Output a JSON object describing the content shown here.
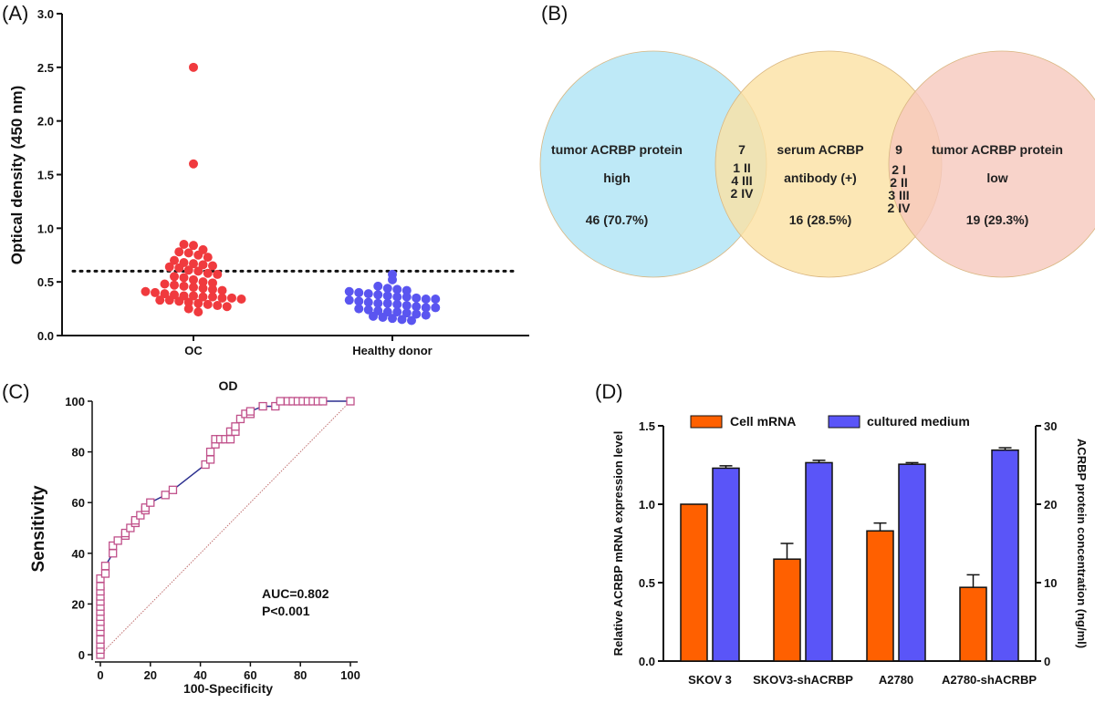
{
  "panels": {
    "a_label": "(A)",
    "b_label": "(B)",
    "c_label": "(C)",
    "d_label": "(D)"
  },
  "chart_data": [
    {
      "type": "scatter",
      "panel": "A",
      "ylabel": "Optical density (450 nm)",
      "ylim": [
        0,
        3.0
      ],
      "yticks": [
        "0.0",
        "0.5",
        "1.0",
        "1.5",
        "2.0",
        "2.5",
        "3.0"
      ],
      "categories": [
        "OC",
        "Healthy donor"
      ],
      "cutoff": 0.6,
      "colors": {
        "OC": "#f03a3e",
        "Healthy donor": "#5a55f0"
      },
      "series": [
        {
          "name": "OC",
          "values": [
            2.5,
            1.6,
            0.85,
            0.84,
            0.8,
            0.78,
            0.77,
            0.75,
            0.73,
            0.7,
            0.68,
            0.67,
            0.66,
            0.65,
            0.64,
            0.63,
            0.61,
            0.6,
            0.58,
            0.57,
            0.55,
            0.54,
            0.52,
            0.5,
            0.49,
            0.48,
            0.47,
            0.46,
            0.45,
            0.44,
            0.43,
            0.42,
            0.41,
            0.4,
            0.39,
            0.38,
            0.37,
            0.37,
            0.36,
            0.36,
            0.35,
            0.35,
            0.34,
            0.33,
            0.33,
            0.32,
            0.31,
            0.3,
            0.29,
            0.28,
            0.27,
            0.25,
            0.22
          ]
        },
        {
          "name": "Healthy donor",
          "values": [
            0.57,
            0.52,
            0.46,
            0.44,
            0.43,
            0.42,
            0.41,
            0.4,
            0.39,
            0.38,
            0.37,
            0.36,
            0.36,
            0.35,
            0.34,
            0.34,
            0.33,
            0.32,
            0.31,
            0.3,
            0.3,
            0.29,
            0.28,
            0.27,
            0.26,
            0.26,
            0.25,
            0.24,
            0.23,
            0.22,
            0.22,
            0.21,
            0.2,
            0.19,
            0.18,
            0.17,
            0.16,
            0.15,
            0.14
          ]
        }
      ]
    },
    {
      "type": "venn",
      "panel": "B",
      "colors": [
        "#aee3f5",
        "#fbe1a3",
        "#f6c8bd"
      ],
      "sets": [
        {
          "lines": [
            "tumor ACRBP protein",
            "high",
            "46 (70.7%)"
          ]
        },
        {
          "lines": [
            "serum ACRBP",
            "antibody (+)",
            "16 (28.5%)"
          ]
        },
        {
          "lines": [
            "tumor ACRBP protein",
            "low",
            "19 (29.3%)"
          ]
        }
      ],
      "intersections": [
        {
          "lines": [
            "7",
            "1 II",
            "4 III",
            "2 IV"
          ]
        },
        {
          "lines": [
            "9",
            "2 I",
            "2 II",
            "3 III",
            "2 IV"
          ]
        }
      ]
    },
    {
      "type": "line",
      "panel": "C",
      "title": "OD",
      "xlabel": "100-Specificity",
      "ylabel": "Sensitivity",
      "xlim": [
        0,
        100
      ],
      "ylim": [
        0,
        100
      ],
      "xticks": [
        "0",
        "20",
        "40",
        "60",
        "80",
        "100"
      ],
      "yticks": [
        "0",
        "20",
        "40",
        "60",
        "80",
        "100"
      ],
      "annotation": [
        "AUC=0.802",
        "P<0.001"
      ],
      "colors": {
        "curve": "#2b2f8f",
        "marker": "#c0508a",
        "reference": "#c07070"
      },
      "series": [
        {
          "name": "ROC",
          "x": [
            0,
            0,
            0,
            0,
            0,
            0,
            0,
            0,
            0,
            0,
            0,
            0,
            0,
            0,
            0,
            2,
            2,
            5,
            5,
            7,
            10,
            10,
            12,
            14,
            14,
            16,
            18,
            18,
            20,
            26,
            29,
            42,
            44,
            44,
            46,
            46,
            48,
            50,
            52,
            52,
            54,
            54,
            56,
            58,
            60,
            60,
            65,
            70,
            72,
            75,
            77,
            79,
            81,
            83,
            85,
            87,
            89,
            100
          ],
          "y": [
            0,
            2,
            4,
            6,
            9,
            11,
            13,
            15,
            17,
            19,
            21,
            23,
            25,
            27,
            30,
            32,
            35,
            40,
            43,
            45,
            47,
            48,
            50,
            52,
            53,
            55,
            57,
            58,
            60,
            63,
            65,
            75,
            77,
            80,
            83,
            85,
            85,
            85,
            85,
            88,
            88,
            90,
            93,
            95,
            95,
            96,
            98,
            98,
            100,
            100,
            100,
            100,
            100,
            100,
            100,
            100,
            100,
            100
          ]
        }
      ]
    },
    {
      "type": "bar",
      "panel": "D",
      "categories": [
        "SKOV 3",
        "SKOV3-shACRBP",
        "A2780",
        "A2780-shACRBP"
      ],
      "ylabel": "Relative  ACRBP mRNA expression level",
      "y2label": "ACRBP protein concentration (ng/ml)",
      "ylim": [
        0,
        1.5
      ],
      "y2lim": [
        0,
        30
      ],
      "yticks": [
        "0.0",
        "0.5",
        "1.0",
        "1.5"
      ],
      "y2ticks": [
        "0",
        "10",
        "20",
        "30"
      ],
      "colors": {
        "Cell mRNA": "#ff6000",
        "cultured medium": "#5a55f8"
      },
      "series": [
        {
          "name": "Cell mRNA",
          "axis": "left",
          "values": [
            1.0,
            0.65,
            0.83,
            0.47
          ],
          "errors": [
            0,
            0.1,
            0.05,
            0.08
          ]
        },
        {
          "name": "cultured medium",
          "axis": "right",
          "values": [
            24.6,
            25.3,
            25.1,
            26.9
          ],
          "errors": [
            0.3,
            0.3,
            0.2,
            0.3
          ]
        }
      ]
    }
  ]
}
